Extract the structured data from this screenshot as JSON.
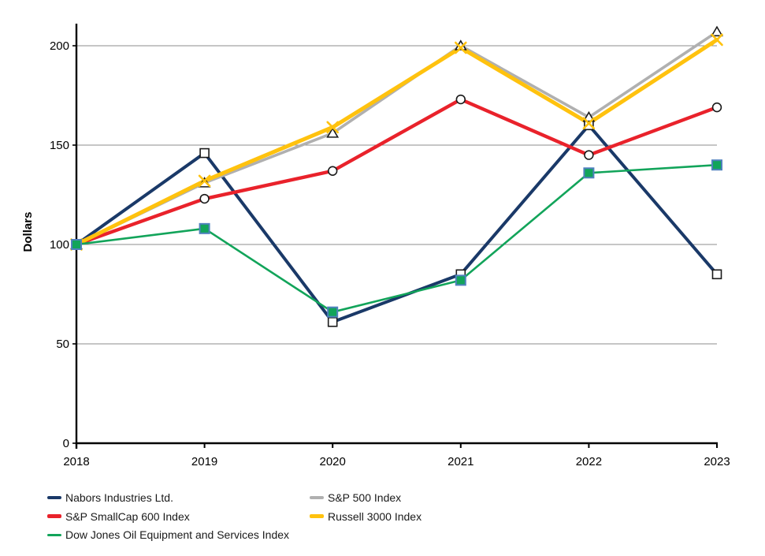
{
  "chart_data": {
    "type": "line",
    "title": "",
    "ylabel": "Dollars",
    "x_labels": [
      "2018",
      "2019",
      "2020",
      "2021",
      "2022",
      "2023"
    ],
    "y_ticks": [
      0,
      50,
      100,
      150,
      200
    ],
    "ylim": [
      0,
      211
    ],
    "grid": true,
    "legend_position": "bottom",
    "background_color": "#ffffff",
    "axis_color": "#000000",
    "gridline_color": "#8c8c8c",
    "text_color": "#000000",
    "series": [
      {
        "name": "Nabors Industries Ltd.",
        "color": "#1A3968",
        "line_width": 4,
        "marker": "open-square",
        "marker_border": "#1a1a1a",
        "marker_fill": "#ffffff",
        "values": [
          100,
          146,
          61,
          85,
          160,
          85
        ]
      },
      {
        "name": "S&P 500 Index",
        "color": "#B0B0B0",
        "line_width": 3.6,
        "marker": "open-triangle",
        "marker_border": "#1a1a1a",
        "marker_fill": "#ffffff",
        "values": [
          100,
          131,
          156,
          200,
          164,
          207
        ]
      },
      {
        "name": "S&P SmallCap 600 Index",
        "color": "#E9222B",
        "line_width": 4.4,
        "marker": "open-circle",
        "marker_border": "#1a1a1a",
        "marker_fill": "#ffffff",
        "values": [
          100,
          123,
          137,
          173,
          145,
          169
        ]
      },
      {
        "name": "Russell 3000 Index",
        "color": "#FFC20E",
        "line_width": 5,
        "marker": "x",
        "marker_border": "#FFC20E",
        "marker_fill": "#FFC20E",
        "values": [
          100,
          132,
          159,
          199,
          161,
          203
        ]
      },
      {
        "name": "Dow Jones Oil Equipment and Services Index",
        "color": "#12A45A",
        "line_width": 2.6,
        "marker": "filled-square",
        "marker_border": "#4F81BD",
        "marker_fill": "#12A45A",
        "values": [
          100,
          108,
          66,
          82,
          136,
          140
        ]
      }
    ]
  }
}
